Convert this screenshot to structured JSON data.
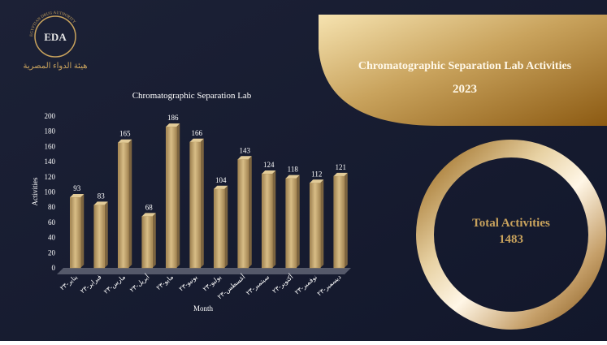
{
  "header": {
    "logo_text": "EDA",
    "org_name": "EGYPTIAN DRUG AUTHORITY",
    "org_name_ar": "هيئة الدواء المصرية"
  },
  "banner": {
    "title": "Chromatographic Separation Lab Activities",
    "year": "2023"
  },
  "total": {
    "label": "Total Activities",
    "value": 1483
  },
  "chart_data": {
    "type": "bar",
    "title": "Chromatographic Separation Lab",
    "y_label": "Activities",
    "x_label": "Month",
    "categories": [
      "يناير-٢٣",
      "فبراير-٢٣",
      "مارس-٢٣",
      "أبريل-٢٣",
      "مايو-٢٣",
      "يونيو-٢٣",
      "يوليو-٢٣",
      "أغسطس-٢٣",
      "سبتمبر-٢٣",
      "أكتوبر-٢٣",
      "نوفمبر-٢٣",
      "ديسمبر-٢٣"
    ],
    "values": [
      93,
      83,
      165,
      68,
      186,
      166,
      104,
      143,
      124,
      118,
      112,
      121
    ],
    "color": "#b8975c",
    "ylim": [
      0,
      200
    ],
    "yticks": [
      0,
      20,
      40,
      60,
      80,
      100,
      120,
      140,
      160,
      180,
      200
    ],
    "grid": false
  }
}
